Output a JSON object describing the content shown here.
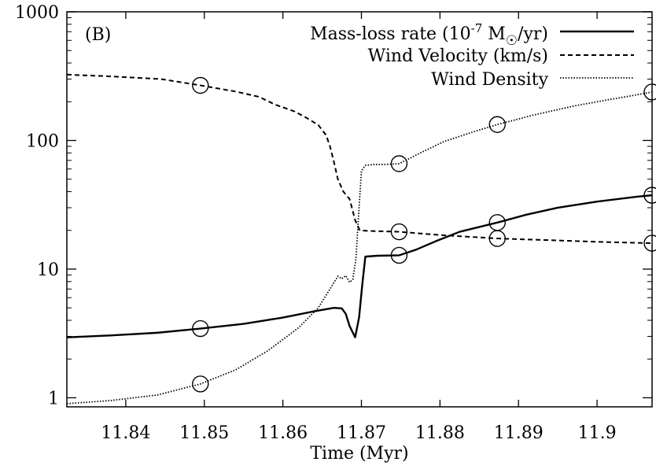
{
  "chart_data": {
    "type": "line",
    "panel_label": "(B)",
    "xlabel": "Time (Myr)",
    "ylabel": "",
    "xlim": [
      11.8325,
      11.907
    ],
    "ylim": [
      0.85,
      1000
    ],
    "yscale": "log",
    "grid": false,
    "legend_position": "top-right",
    "x_ticks": [
      11.84,
      11.85,
      11.86,
      11.87,
      11.88,
      11.89,
      11.9
    ],
    "x_tick_labels": [
      "11.84",
      "11.85",
      "11.86",
      "11.87",
      "11.88",
      "11.89",
      "11.9"
    ],
    "y_ticks": [
      1,
      10,
      100,
      1000
    ],
    "y_tick_labels": [
      "1",
      "10",
      "100",
      "1000"
    ],
    "series": [
      {
        "name": "Mass-loss rate (10-7 M☉/yr)",
        "legend_prefix": "Mass-loss rate (10",
        "legend_sup": "-7",
        "legend_mid": " M",
        "legend_sub": "☉",
        "legend_suffix": "/yr)",
        "style": "solid",
        "points": [
          [
            11.8325,
            2.95
          ],
          [
            11.838,
            3.05
          ],
          [
            11.844,
            3.2
          ],
          [
            11.8495,
            3.45
          ],
          [
            11.855,
            3.75
          ],
          [
            11.86,
            4.2
          ],
          [
            11.864,
            4.7
          ],
          [
            11.8665,
            5.0
          ],
          [
            11.8675,
            4.95
          ],
          [
            11.868,
            4.5
          ],
          [
            11.8685,
            3.6
          ],
          [
            11.8692,
            2.95
          ],
          [
            11.8697,
            4.2
          ],
          [
            11.8701,
            7.5
          ],
          [
            11.8705,
            12.5
          ],
          [
            11.872,
            12.7
          ],
          [
            11.8748,
            12.8
          ],
          [
            11.877,
            14.2
          ],
          [
            11.8795,
            16.5
          ],
          [
            11.8825,
            19.5
          ],
          [
            11.8873,
            23.0
          ],
          [
            11.891,
            26.5
          ],
          [
            11.895,
            30.0
          ],
          [
            11.9,
            33.5
          ],
          [
            11.905,
            36.5
          ],
          [
            11.907,
            37.5
          ]
        ],
        "markers": [
          [
            11.8495,
            3.45
          ],
          [
            11.8748,
            12.8
          ],
          [
            11.8873,
            23.0
          ],
          [
            11.907,
            37.5
          ]
        ]
      },
      {
        "name": "Wind Velocity (km/s)",
        "style": "dashed",
        "points": [
          [
            11.8325,
            325
          ],
          [
            11.838,
            315
          ],
          [
            11.8445,
            300
          ],
          [
            11.8495,
            268
          ],
          [
            11.854,
            240
          ],
          [
            11.857,
            218
          ],
          [
            11.859,
            190
          ],
          [
            11.8615,
            168
          ],
          [
            11.863,
            150
          ],
          [
            11.8645,
            132
          ],
          [
            11.8655,
            110
          ],
          [
            11.866,
            90
          ],
          [
            11.8665,
            68
          ],
          [
            11.867,
            50
          ],
          [
            11.8677,
            40
          ],
          [
            11.8685,
            35
          ],
          [
            11.8692,
            24
          ],
          [
            11.8698,
            20
          ],
          [
            11.871,
            19.8
          ],
          [
            11.8748,
            19.5
          ],
          [
            11.88,
            18.4
          ],
          [
            11.8873,
            17.3
          ],
          [
            11.895,
            16.7
          ],
          [
            11.9,
            16.3
          ],
          [
            11.907,
            15.9
          ]
        ],
        "markers": [
          [
            11.8495,
            268
          ],
          [
            11.8748,
            19.5
          ],
          [
            11.8873,
            17.3
          ],
          [
            11.907,
            15.9
          ]
        ]
      },
      {
        "name": "Wind Density",
        "style": "dotted",
        "points": [
          [
            11.8325,
            0.9
          ],
          [
            11.838,
            0.95
          ],
          [
            11.844,
            1.05
          ],
          [
            11.8495,
            1.28
          ],
          [
            11.854,
            1.65
          ],
          [
            11.858,
            2.3
          ],
          [
            11.862,
            3.5
          ],
          [
            11.8645,
            5.0
          ],
          [
            11.866,
            7.0
          ],
          [
            11.867,
            8.8
          ],
          [
            11.8675,
            8.4
          ],
          [
            11.868,
            8.9
          ],
          [
            11.8685,
            7.9
          ],
          [
            11.8689,
            8.3
          ],
          [
            11.8693,
            12
          ],
          [
            11.8697,
            30
          ],
          [
            11.87,
            58
          ],
          [
            11.8705,
            64
          ],
          [
            11.8715,
            65
          ],
          [
            11.873,
            65
          ],
          [
            11.8748,
            66
          ],
          [
            11.8775,
            80
          ],
          [
            11.8805,
            98
          ],
          [
            11.8845,
            118
          ],
          [
            11.8873,
            133
          ],
          [
            11.892,
            158
          ],
          [
            11.897,
            185
          ],
          [
            11.901,
            205
          ],
          [
            11.905,
            226
          ],
          [
            11.907,
            238
          ]
        ],
        "markers": [
          [
            11.8495,
            1.28
          ],
          [
            11.8748,
            66
          ],
          [
            11.8873,
            133
          ],
          [
            11.907,
            238
          ]
        ]
      }
    ]
  }
}
